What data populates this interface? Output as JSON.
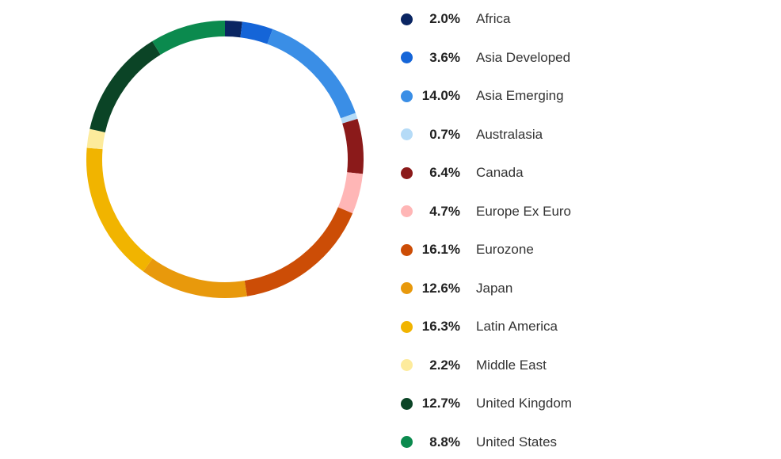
{
  "chart_data": {
    "type": "pie",
    "variant": "donut",
    "legend_position": "right",
    "slices": [
      {
        "label": "Africa",
        "value": 2.0,
        "display": "2.0%",
        "color": "#0a2562"
      },
      {
        "label": "Asia Developed",
        "value": 3.6,
        "display": "3.6%",
        "color": "#1565d8"
      },
      {
        "label": "Asia Emerging",
        "value": 14.0,
        "display": "14.0%",
        "color": "#3a8ee6"
      },
      {
        "label": "Australasia",
        "value": 0.7,
        "display": "0.7%",
        "color": "#b5dbf7"
      },
      {
        "label": "Canada",
        "value": 6.4,
        "display": "6.4%",
        "color": "#8b1a1a"
      },
      {
        "label": "Europe Ex Euro",
        "value": 4.7,
        "display": "4.7%",
        "color": "#ffb6b6"
      },
      {
        "label": "Eurozone",
        "value": 16.1,
        "display": "16.1%",
        "color": "#cc4d06"
      },
      {
        "label": "Japan",
        "value": 12.6,
        "display": "12.6%",
        "color": "#e8990c"
      },
      {
        "label": "Latin America",
        "value": 16.3,
        "display": "16.3%",
        "color": "#f1b400"
      },
      {
        "label": "Middle East",
        "value": 2.2,
        "display": "2.2%",
        "color": "#fdeb9c"
      },
      {
        "label": "United Kingdom",
        "value": 12.7,
        "display": "12.7%",
        "color": "#0b4426"
      },
      {
        "label": "United States",
        "value": 8.8,
        "display": "8.8%",
        "color": "#0b8a4e"
      }
    ]
  }
}
